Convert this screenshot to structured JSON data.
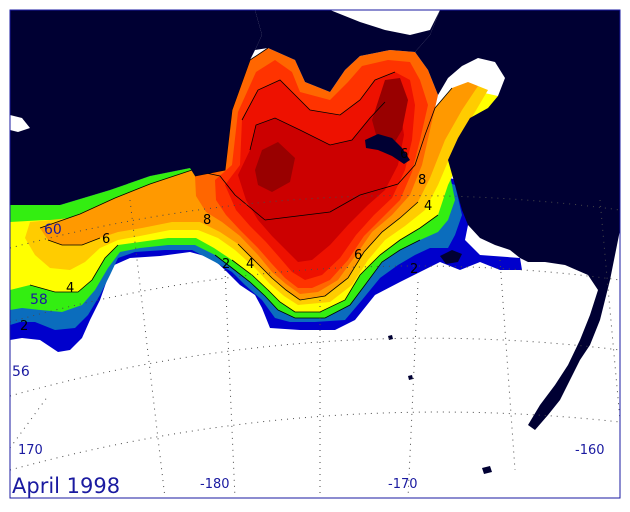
{
  "title": "April 1998",
  "colors": {
    "land": "#000033",
    "ocean_bg": "#ffffff",
    "grid": "#4a4a4a",
    "frame": "#1a1aa0",
    "ice_c0": "#0000cc",
    "ice_c1": "#0b6dbd",
    "ice_c2": "#11a87a",
    "ice_c3": "#33ee11",
    "ice_c4": "#ffff00",
    "ice_c5": "#ffcc00",
    "ice_c6": "#ff9900",
    "ice_c7": "#ff6600",
    "ice_c8": "#ff3300",
    "ice_c9": "#ee1100",
    "ice_c10": "#cc0000",
    "ice_c11": "#990000"
  },
  "grid_labels": {
    "lon_170_left": "170",
    "lon_180": "-180",
    "lon_170_mid": "-170",
    "lon_160": "-160",
    "lat_60": "60",
    "lat_58": "58",
    "lat_56": "56"
  },
  "contour_labels": {
    "c2_left": "2",
    "c4_left": "4",
    "c6_left": "6",
    "c8_center": "8",
    "c2_center": "2",
    "c4_center": "4",
    "c6_center": "6",
    "c4_right": "4",
    "c8_right": "8",
    "c6_right": "6",
    "c2_right": "2"
  }
}
